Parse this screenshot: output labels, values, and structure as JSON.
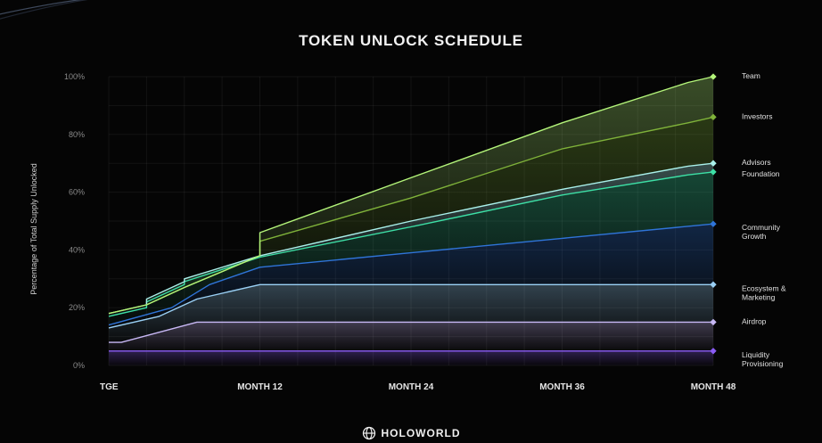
{
  "header": {
    "title": "TOKEN UNLOCK SCHEDULE"
  },
  "brand": {
    "name": "HOLOWORLD",
    "logo_icon": "holoworld-logo-icon"
  },
  "chart_data": {
    "type": "area",
    "title": "TOKEN UNLOCK SCHEDULE",
    "ylabel": "Percentage of Total Supply Unlocked",
    "xlabel": "",
    "x_ticks": [
      {
        "value": 0,
        "label": "TGE"
      },
      {
        "value": 12,
        "label": "MONTH 12"
      },
      {
        "value": 24,
        "label": "MONTH 24"
      },
      {
        "value": 36,
        "label": "MONTH 36"
      },
      {
        "value": 48,
        "label": "MONTH 48"
      }
    ],
    "y_ticks": [
      {
        "value": 0,
        "label": "0%"
      },
      {
        "value": 20,
        "label": "20%"
      },
      {
        "value": 40,
        "label": "40%"
      },
      {
        "value": 60,
        "label": "60%"
      },
      {
        "value": 80,
        "label": "80%"
      },
      {
        "value": 100,
        "label": "100%"
      }
    ],
    "xlim": [
      0,
      48
    ],
    "ylim": [
      0,
      100
    ],
    "stacked": true,
    "grid": true,
    "legend": "right",
    "series": [
      {
        "name": "Team",
        "color": "#b4f57a",
        "points": [
          [
            0,
            18
          ],
          [
            3,
            21
          ],
          [
            6,
            27
          ],
          [
            12,
            38
          ],
          [
            12,
            46
          ],
          [
            24,
            65
          ],
          [
            36,
            84
          ],
          [
            46,
            98
          ],
          [
            48,
            100
          ]
        ]
      },
      {
        "name": "Investors",
        "color": "#7fb23a",
        "points": [
          [
            0,
            18
          ],
          [
            3,
            21
          ],
          [
            6,
            27
          ],
          [
            12,
            38
          ],
          [
            12,
            43
          ],
          [
            24,
            58
          ],
          [
            36,
            75
          ],
          [
            46,
            84
          ],
          [
            48,
            86
          ]
        ]
      },
      {
        "name": "Advisors",
        "color": "#a9f0ea",
        "points": [
          [
            0,
            18
          ],
          [
            3,
            21
          ],
          [
            3,
            23
          ],
          [
            6,
            29
          ],
          [
            6,
            30
          ],
          [
            12,
            38
          ],
          [
            24,
            50
          ],
          [
            36,
            61
          ],
          [
            46,
            69
          ],
          [
            48,
            70
          ]
        ]
      },
      {
        "name": "Foundation",
        "color": "#3de0a6",
        "points": [
          [
            0,
            17
          ],
          [
            3,
            20
          ],
          [
            3,
            22
          ],
          [
            6,
            28
          ],
          [
            6,
            29
          ],
          [
            12,
            37.5
          ],
          [
            24,
            48
          ],
          [
            36,
            59
          ],
          [
            46,
            66
          ],
          [
            48,
            67
          ]
        ]
      },
      {
        "name": "Community\nGrowth",
        "color": "#2f74d8",
        "points": [
          [
            0,
            14
          ],
          [
            5,
            20
          ],
          [
            8,
            28
          ],
          [
            12,
            34
          ],
          [
            24,
            39
          ],
          [
            36,
            44
          ],
          [
            48,
            49
          ]
        ]
      },
      {
        "name": "Ecosystem &\nMarketing",
        "color": "#9ad0f5",
        "points": [
          [
            0,
            13
          ],
          [
            4,
            17
          ],
          [
            7,
            23
          ],
          [
            12,
            28
          ],
          [
            48,
            28
          ]
        ]
      },
      {
        "name": "Airdrop",
        "color": "#c8b8f5",
        "points": [
          [
            0,
            8
          ],
          [
            1,
            8
          ],
          [
            7,
            15
          ],
          [
            48,
            15
          ]
        ]
      },
      {
        "name": "Liquidity\nProvisioning",
        "color": "#8b5cf6",
        "points": [
          [
            0,
            5
          ],
          [
            48,
            5
          ]
        ]
      }
    ]
  }
}
